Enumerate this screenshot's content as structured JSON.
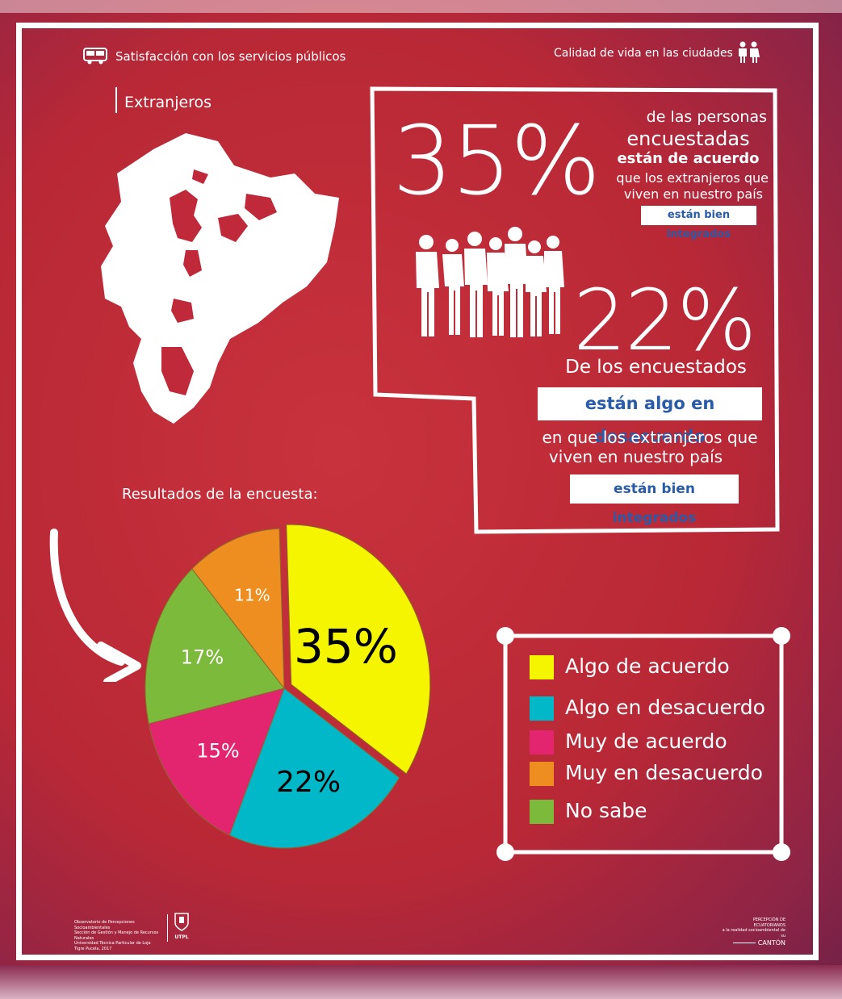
{
  "header": {
    "left_title": "Satisfacción con los servicios públicos",
    "right_title": "Calidad de vida en las ciudades",
    "section": "Extranjeros"
  },
  "stat1": {
    "value": "35%",
    "line1": "de las personas",
    "line2": "encuestadas",
    "line3": "están de acuerdo",
    "line4": "que los extranjeros que",
    "line5": "viven en nuestro país",
    "tag": "están bien integrados"
  },
  "stat2": {
    "value": "22%",
    "line1": "De los encuestados",
    "tag1": "están algo en desacuerdo",
    "line2": "en que los extranjeros que",
    "line3": "viven en nuestro país",
    "tag2": "están bien integrados"
  },
  "survey_label": "Resultados de la encuesta:",
  "chart_data": {
    "type": "pie",
    "categories": [
      "Algo de acuerdo",
      "Algo en desacuerdo",
      "Muy de acuerdo",
      "Muy en desacuerdo",
      "No sabe"
    ],
    "values": [
      35,
      22,
      15,
      11,
      17
    ],
    "labels": [
      "35%",
      "22%",
      "15%",
      "11%",
      "17%"
    ],
    "colors": [
      "#f5f500",
      "#00b8c8",
      "#e3246e",
      "#ee8e20",
      "#7cba3c"
    ],
    "legend_position": "right"
  },
  "legend": [
    {
      "label": "Algo de acuerdo",
      "color": "#f5f500"
    },
    {
      "label": "Algo en desacuerdo",
      "color": "#00b8c8"
    },
    {
      "label": "Muy de acuerdo",
      "color": "#e3246e"
    },
    {
      "label": "Muy en desacuerdo",
      "color": "#ee8e20"
    },
    {
      "label": "No sabe",
      "color": "#7cba3c"
    }
  ],
  "footer": {
    "left_lines": [
      "Observatorio de Percepciones Socioambientales",
      "Sección de Gestión y Manejo de Recursos Naturales",
      "Universidad Técnica Particular de Loja",
      "Tigre Pucela, 2017"
    ],
    "left_logo_text": "UTPL",
    "right_lines": [
      "PERCEPCIÓN DE ECUATORIANOS",
      "a la realidad socioambiental de su"
    ],
    "right_word": "CANTÓN"
  },
  "icons": [
    "bus-icon",
    "couple-icon",
    "people-group-icon",
    "arrow-curved-icon",
    "ecuador-map",
    "utpl-seal-icon"
  ]
}
